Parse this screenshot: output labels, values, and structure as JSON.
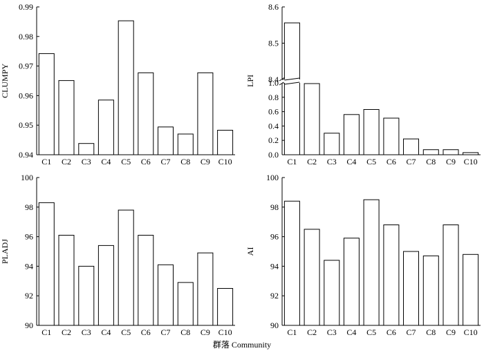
{
  "figure_xlabel": "群落 Community",
  "chart_data": [
    {
      "id": "clumpy",
      "type": "bar",
      "ylabel": "CLUMPY",
      "categories": [
        "C1",
        "C2",
        "C3",
        "C4",
        "C5",
        "C6",
        "C7",
        "C8",
        "C9",
        "C10"
      ],
      "values": [
        0.9742,
        0.9651,
        0.9438,
        0.9585,
        0.9853,
        0.9677,
        0.9494,
        0.947,
        0.9677,
        0.9483
      ],
      "ylim": [
        0.94,
        0.99
      ],
      "yticks": [
        "0.94",
        "0.95",
        "0.96",
        "0.97",
        "0.98",
        "0.99"
      ]
    },
    {
      "id": "lpi",
      "type": "bar",
      "ylabel": "LPI",
      "broken_axis": true,
      "categories": [
        "C1",
        "C2",
        "C3",
        "C4",
        "C5",
        "C6",
        "C7",
        "C8",
        "C9",
        "C10"
      ],
      "values": [
        8.556,
        0.99,
        0.3,
        0.56,
        0.63,
        0.51,
        0.22,
        0.07,
        0.07,
        0.03
      ],
      "ylim_lower": [
        0.0,
        1.0
      ],
      "ylim_upper": [
        8.4,
        8.6
      ],
      "yticks_lower": [
        "0.0",
        "0.2",
        "0.4",
        "0.6",
        "0.8",
        "1.0"
      ],
      "yticks_upper": [
        "8.4",
        "8.5",
        "8.6"
      ]
    },
    {
      "id": "pladj",
      "type": "bar",
      "ylabel": "PLADJ",
      "categories": [
        "C1",
        "C2",
        "C3",
        "C4",
        "C5",
        "C6",
        "C7",
        "C8",
        "C9",
        "C10"
      ],
      "values": [
        98.3,
        96.1,
        94.0,
        95.4,
        97.8,
        96.1,
        94.1,
        92.9,
        94.9,
        92.5
      ],
      "ylim": [
        90,
        100
      ],
      "yticks": [
        "90",
        "92",
        "94",
        "96",
        "98",
        "100"
      ]
    },
    {
      "id": "ai",
      "type": "bar",
      "ylabel": "AI",
      "categories": [
        "C1",
        "C2",
        "C3",
        "C4",
        "C5",
        "C6",
        "C7",
        "C8",
        "C9",
        "C10"
      ],
      "values": [
        98.4,
        96.5,
        94.4,
        95.9,
        98.5,
        96.8,
        95.0,
        94.7,
        96.8,
        94.8
      ],
      "ylim": [
        90,
        100
      ],
      "yticks": [
        "90",
        "92",
        "94",
        "96",
        "98",
        "100"
      ]
    }
  ]
}
